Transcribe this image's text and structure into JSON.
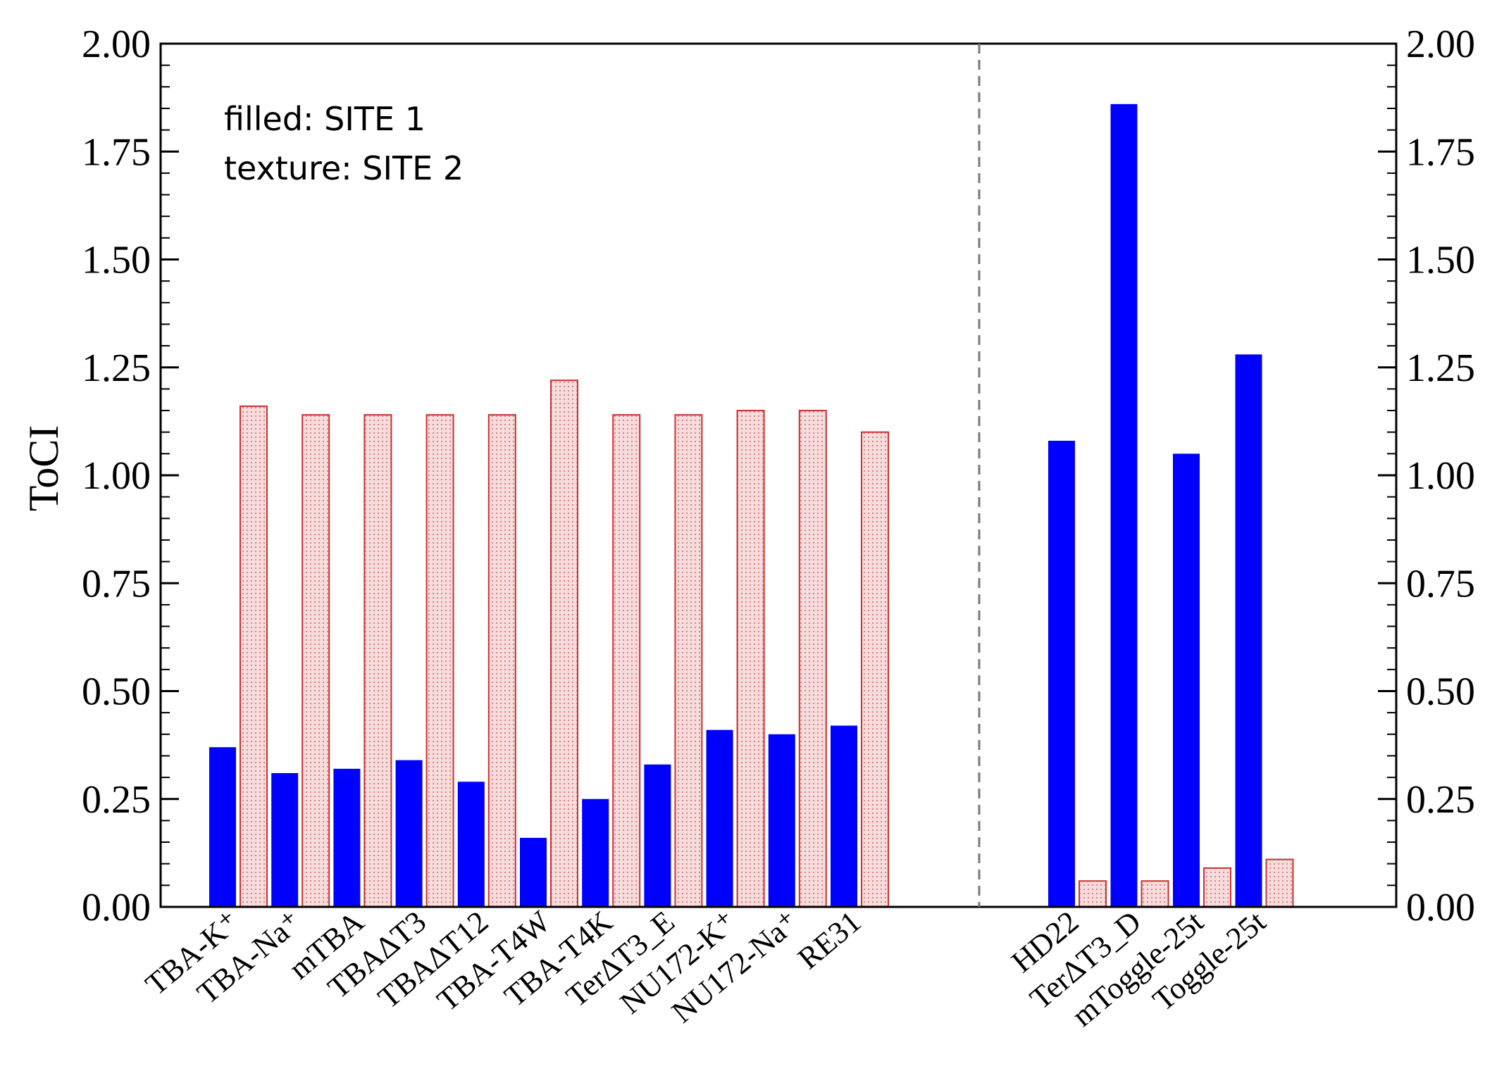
{
  "chart_data": {
    "type": "bar",
    "ylabel": "ToCI",
    "ylim": [
      0,
      2
    ],
    "yticks": [
      "0.00",
      "0.25",
      "0.50",
      "0.75",
      "1.00",
      "1.25",
      "1.50",
      "1.75",
      "2.00"
    ],
    "legend": [
      "filled: SITE 1",
      "texture: SITE 2"
    ],
    "colors": {
      "site1": "#0000ff",
      "site2_fill": "#f6dcdc",
      "site2_edge": "#c83232",
      "divider": "#777777"
    },
    "groups": [
      {
        "categories": [
          "TBA-K⁺",
          "TBA-Na⁺",
          "mTBA",
          "TBAΔT3",
          "TBAΔT12",
          "TBA-T4W",
          "TBA-T4K",
          "TerΔT3_E",
          "NU172-K⁺",
          "NU172-Na⁺",
          "RE31"
        ],
        "series": [
          {
            "name": "SITE 1",
            "values": [
              0.37,
              0.31,
              0.32,
              0.34,
              0.29,
              0.16,
              0.25,
              0.33,
              0.41,
              0.4,
              0.42
            ]
          },
          {
            "name": "SITE 2",
            "values": [
              1.16,
              1.14,
              1.14,
              1.14,
              1.14,
              1.22,
              1.14,
              1.14,
              1.15,
              1.15,
              1.1
            ]
          }
        ]
      },
      {
        "categories": [
          "HD22",
          "TerΔT3_D",
          "mToggle-25t",
          "Toggle-25t"
        ],
        "series": [
          {
            "name": "SITE 1",
            "values": [
              1.08,
              1.86,
              1.05,
              1.28
            ]
          },
          {
            "name": "SITE 2",
            "values": [
              0.06,
              0.06,
              0.09,
              0.11
            ]
          }
        ]
      }
    ]
  }
}
